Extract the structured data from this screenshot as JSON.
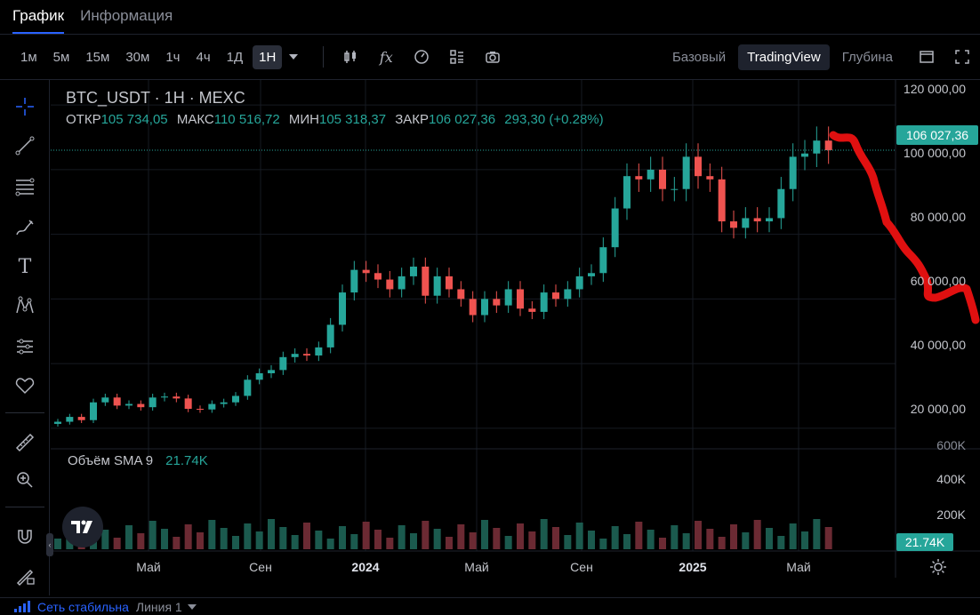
{
  "tabs": [
    {
      "label": "График",
      "active": true
    },
    {
      "label": "Информация",
      "active": false
    }
  ],
  "toolbar": {
    "timeframes": [
      "1м",
      "5м",
      "15м",
      "30м",
      "1ч",
      "4ч",
      "1Д",
      "1Н"
    ],
    "selected_timeframe": "1Н",
    "views": [
      "Базовый",
      "TradingView",
      "Глубина"
    ],
    "selected_view": "TradingView"
  },
  "legend": {
    "title": "BTC_USDT · 1Н · MEXC",
    "open_label": "ОТКР",
    "open": "105 734,05",
    "high_label": "МАКС",
    "high": "110 516,72",
    "low_label": "МИН",
    "low": "105 318,37",
    "close_label": "ЗАКР",
    "close": "106 027,36",
    "change": "293,30 (+0.28%)",
    "volume_label": "Объём SMA 9",
    "volume_value": "21.74K"
  },
  "price_axis": [
    "120 000,00",
    "100 000,00",
    "80 000,00",
    "60 000,00",
    "40 000,00",
    "20 000,00"
  ],
  "volume_axis": [
    "600K",
    "400K",
    "200K"
  ],
  "last_price_tag": "106 027,36",
  "volume_tag": "21.74K",
  "time_axis": [
    {
      "label": "Май",
      "bold": false
    },
    {
      "label": "Сен",
      "bold": false
    },
    {
      "label": "2024",
      "bold": true
    },
    {
      "label": "Май",
      "bold": false
    },
    {
      "label": "Сен",
      "bold": false
    },
    {
      "label": "2025",
      "bold": true
    },
    {
      "label": "Май",
      "bold": false
    }
  ],
  "status": {
    "network": "Сеть стабильна",
    "line": "Линия 1"
  },
  "colors": {
    "up": "#26a69a",
    "down": "#ef5350",
    "accent": "#2962ff",
    "annotation": "#e01010"
  },
  "chart_data": {
    "type": "candlestick",
    "interval": "1W",
    "symbol": "BTC_USDT",
    "ylim": [
      15000,
      125000
    ],
    "price_close_weekly": [
      22000,
      23500,
      22500,
      28000,
      29500,
      27000,
      27500,
      26500,
      29500,
      29800,
      29200,
      26000,
      25800,
      27500,
      28000,
      30000,
      35000,
      37000,
      38000,
      42000,
      43000,
      42500,
      45000,
      52000,
      62000,
      69000,
      68000,
      66000,
      63000,
      67000,
      70000,
      61000,
      67000,
      63000,
      60000,
      55000,
      60000,
      58000,
      63000,
      57000,
      56000,
      62000,
      60000,
      63000,
      67000,
      68000,
      76000,
      88000,
      98000,
      97000,
      100000,
      94000,
      94000,
      104000,
      98000,
      97000,
      84000,
      82000,
      85000,
      84000,
      85000,
      94000,
      104000,
      105000,
      109000,
      106027
    ]
  }
}
